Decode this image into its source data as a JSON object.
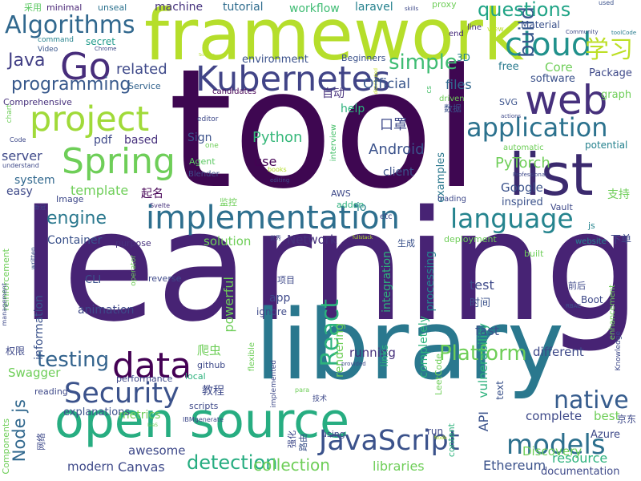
{
  "words": [
    {
      "text": "tool",
      "color": "#3e0751"
    },
    {
      "text": "learning",
      "color": "#472374"
    },
    {
      "text": "library",
      "color": "#2a788e"
    },
    {
      "text": "framework",
      "color": "#b5de2b"
    },
    {
      "text": "open source",
      "color": "#27ad81"
    },
    {
      "text": "list",
      "color": "#3b2a6e"
    },
    {
      "text": "Kubernetes",
      "color": "#414487"
    },
    {
      "text": "web",
      "color": "#46307c"
    },
    {
      "text": "Go",
      "color": "#472d7b"
    },
    {
      "text": "project",
      "color": "#a0da39"
    },
    {
      "text": "Spring",
      "color": "#6ece58"
    },
    {
      "text": "implementation",
      "color": "#2e6f8e"
    },
    {
      "text": "cloud",
      "color": "#21918c"
    },
    {
      "text": "application",
      "color": "#2c728e"
    },
    {
      "text": "language",
      "color": "#25848e"
    },
    {
      "text": "data",
      "color": "#440154"
    },
    {
      "text": "Security",
      "color": "#3b528b"
    },
    {
      "text": "JavaScript",
      "color": "#3b528b"
    },
    {
      "text": "models",
      "color": "#2d708e"
    },
    {
      "text": "Algorithms",
      "color": "#31688e"
    },
    {
      "text": "build",
      "color": "#38588c"
    },
    {
      "text": "questions",
      "color": "#20a486"
    },
    {
      "text": "学习",
      "color": "#bddf26"
    },
    {
      "text": "React",
      "color": "#2db27d"
    },
    {
      "text": "Platform",
      "color": "#6ece58"
    },
    {
      "text": "testing",
      "color": "#33638d"
    },
    {
      "text": "native",
      "color": "#365c8d"
    },
    {
      "text": "detection",
      "color": "#27ad81"
    },
    {
      "text": "simple",
      "color": "#3fbc73"
    },
    {
      "text": "Java",
      "color": "#423f85"
    },
    {
      "text": "programming",
      "color": "#38598c"
    },
    {
      "text": "Node js",
      "color": "#31688e"
    },
    {
      "text": "engine",
      "color": "#2a788e"
    },
    {
      "text": "Android",
      "color": "#3b528b"
    },
    {
      "text": "Python",
      "color": "#35b779"
    },
    {
      "text": "PyTorch",
      "color": "#6ece58"
    },
    {
      "text": "related",
      "color": "#3e4989"
    },
    {
      "text": "machine",
      "color": "#46337e"
    },
    {
      "text": "tutorial",
      "color": "#2f6c8e"
    },
    {
      "text": "workflow",
      "color": "#3fbc73"
    },
    {
      "text": "laravel",
      "color": "#26828e"
    },
    {
      "text": "minimal",
      "color": "#482475"
    },
    {
      "text": "unseal",
      "color": "#2c728e"
    },
    {
      "text": "采用",
      "color": "#5cc863"
    },
    {
      "text": "proxy",
      "color": "#6ece58"
    },
    {
      "text": "skills",
      "color": "#3e4989"
    },
    {
      "text": "used",
      "color": "#3b528b"
    },
    {
      "text": "command",
      "color": "#26828e"
    },
    {
      "text": "secret",
      "color": "#1f9a8a"
    },
    {
      "text": "Video",
      "color": "#39568c"
    },
    {
      "text": "Chrome",
      "color": "#3e4989"
    },
    {
      "text": "Screens",
      "color": "#b5de2b"
    },
    {
      "text": "Material",
      "color": "#3b528b"
    },
    {
      "text": "line",
      "color": "#46307c"
    },
    {
      "text": "view",
      "color": "#bddf26"
    },
    {
      "text": "end",
      "color": "#472c7a"
    },
    {
      "text": "toolCode",
      "color": "#287c8e"
    },
    {
      "text": "3D",
      "color": "#25848e"
    },
    {
      "text": "environment",
      "color": "#3b528b"
    },
    {
      "text": "Beginners",
      "color": "#3b528b"
    },
    {
      "text": "distributed",
      "color": "#c8e020"
    },
    {
      "text": "Core",
      "color": "#6ece58"
    },
    {
      "text": "free",
      "color": "#297a8e"
    },
    {
      "text": "Package",
      "color": "#3e4989"
    },
    {
      "text": "software",
      "color": "#3b528b"
    },
    {
      "text": "Official",
      "color": "#39568c"
    },
    {
      "text": "files",
      "color": "#31688e"
    },
    {
      "text": "cs",
      "color": "#4ac16d"
    },
    {
      "text": "graph",
      "color": "#6ece58"
    },
    {
      "text": "Service",
      "color": "#33638d"
    },
    {
      "text": "candidates",
      "color": "#440154"
    },
    {
      "text": "自动",
      "color": "#46307c"
    },
    {
      "text": "driven",
      "color": "#6ece58"
    },
    {
      "text": "数据",
      "color": "#3b528b"
    },
    {
      "text": "SVG",
      "color": "#3b528b"
    },
    {
      "text": "actions",
      "color": "#3e4989"
    },
    {
      "text": "Comprehensive",
      "color": "#46307c"
    },
    {
      "text": "chart",
      "color": "#6ece58"
    },
    {
      "text": "help",
      "color": "#2db27d"
    },
    {
      "text": "editor",
      "color": "#3e4989"
    },
    {
      "text": "口罩",
      "color": "#3e4989"
    },
    {
      "text": "Code",
      "color": "#3e4989"
    },
    {
      "text": "pdf",
      "color": "#3e4989"
    },
    {
      "text": "based",
      "color": "#46307c"
    },
    {
      "text": "Sign",
      "color": "#3b528b"
    },
    {
      "text": "one",
      "color": "#6ece58"
    },
    {
      "text": "interview",
      "color": "#4ac16d"
    },
    {
      "text": "automatic",
      "color": "#6ece58"
    },
    {
      "text": "potential",
      "color": "#26828e"
    },
    {
      "text": "server",
      "color": "#3e4989"
    },
    {
      "text": "understand",
      "color": "#3e4989"
    },
    {
      "text": "Agent",
      "color": "#5cc863"
    },
    {
      "text": "Blender",
      "color": "#3e4989"
    },
    {
      "text": "use",
      "color": "#440154"
    },
    {
      "text": "books",
      "color": "#b5de2b"
    },
    {
      "text": "editing",
      "color": "#3e4989"
    },
    {
      "text": "client",
      "color": "#3b528b"
    },
    {
      "text": "examples",
      "color": "#2a788e"
    },
    {
      "text": "Professional",
      "color": "#3e4989"
    },
    {
      "text": "system",
      "color": "#31688e"
    },
    {
      "text": "easy",
      "color": "#3e4989"
    },
    {
      "text": "template",
      "color": "#6ece58"
    },
    {
      "text": "起名",
      "color": "#440154"
    },
    {
      "text": "Image",
      "color": "#3e4989"
    },
    {
      "text": "Svelte",
      "color": "#46307c"
    },
    {
      "text": "监控",
      "color": "#6ece58"
    },
    {
      "text": "AWS",
      "color": "#3e4989"
    },
    {
      "text": "addon",
      "color": "#2db27d"
    },
    {
      "text": "io",
      "color": "#26828e"
    },
    {
      "text": "Google",
      "color": "#3b528b"
    },
    {
      "text": "inspired",
      "color": "#3b528b"
    },
    {
      "text": "trading",
      "color": "#3e4989"
    },
    {
      "text": "Vault",
      "color": "#3e4989"
    },
    {
      "text": "js",
      "color": "#25848e"
    },
    {
      "text": "支持",
      "color": "#6ece58"
    },
    {
      "text": "新冠",
      "color": "#3e4989"
    },
    {
      "text": "etc",
      "color": "#3e4989"
    },
    {
      "text": "Container",
      "color": "#3b528b"
    },
    {
      "text": "solution",
      "color": "#6ece58"
    },
    {
      "text": "Network",
      "color": "#46307c"
    },
    {
      "text": "生成",
      "color": "#3b528b"
    },
    {
      "text": "deployment",
      "color": "#6ece58"
    },
    {
      "text": "website",
      "color": "#26828e"
    },
    {
      "text": "下单",
      "color": "#3e4989"
    },
    {
      "text": "written",
      "color": "#3b528b"
    },
    {
      "text": "reinforcement",
      "color": "#6ece58"
    },
    {
      "text": "purpose",
      "color": "#46307c"
    },
    {
      "text": "operator",
      "color": "#6ece58"
    },
    {
      "text": "优秀",
      "color": "#3e4989"
    },
    {
      "text": "fullstack",
      "color": "#b5de2b"
    },
    {
      "text": "built",
      "color": "#6ece58"
    },
    {
      "text": "CLI",
      "color": "#3b528b"
    },
    {
      "text": "reverse",
      "color": "#3e4989"
    },
    {
      "text": "项目",
      "color": "#3e4989"
    },
    {
      "text": "powerful",
      "color": "#6ece58"
    },
    {
      "text": "integration",
      "color": "#2db27d"
    },
    {
      "text": "processing",
      "color": "#26828e"
    },
    {
      "text": "test",
      "color": "#3e4989"
    },
    {
      "text": "时间",
      "color": "#3b528b"
    },
    {
      "text": "前后",
      "color": "#3e4989"
    },
    {
      "text": "Boot",
      "color": "#3e4989"
    },
    {
      "text": "RBAC",
      "color": "#3b528b"
    },
    {
      "text": "enhancement",
      "color": "#6ece58"
    },
    {
      "text": "management",
      "color": "#3e4989"
    },
    {
      "text": "animation",
      "color": "#3e4989"
    },
    {
      "text": "information",
      "color": "#3b528b"
    },
    {
      "text": "app",
      "color": "#3e4989"
    },
    {
      "text": "ignore",
      "color": "#3e4989"
    },
    {
      "text": "rendering",
      "color": "#6ece58"
    },
    {
      "text": "completely",
      "color": "#2db27d"
    },
    {
      "text": "vulnerability",
      "color": "#2db27d"
    },
    {
      "text": "fast",
      "color": "#3b528b"
    },
    {
      "text": "Knowledge",
      "color": "#3e4989"
    },
    {
      "text": "权限",
      "color": "#3e4989"
    },
    {
      "text": "爬虫",
      "color": "#6ece58"
    },
    {
      "text": "running",
      "color": "#46307c"
    },
    {
      "text": "different",
      "color": "#3e4989"
    },
    {
      "text": "Swagger",
      "color": "#6ece58"
    },
    {
      "text": "performance",
      "color": "#3e4989"
    },
    {
      "text": "local",
      "color": "#2db27d"
    },
    {
      "text": "github",
      "color": "#3e4989"
    },
    {
      "text": "flexible",
      "color": "#6ece58"
    },
    {
      "text": "implemented",
      "color": "#3e4989"
    },
    {
      "text": "provided",
      "color": "#3e4989"
    },
    {
      "text": "links",
      "color": "#2db27d"
    },
    {
      "text": "LeetCode",
      "color": "#6ece58"
    },
    {
      "text": "text",
      "color": "#3b528b"
    },
    {
      "text": "reading",
      "color": "#3e4989"
    },
    {
      "text": "教程",
      "color": "#3e4989"
    },
    {
      "text": "para",
      "color": "#6ece58"
    },
    {
      "text": "技术",
      "color": "#3e4989"
    },
    {
      "text": "metrics",
      "color": "#6ece58"
    },
    {
      "text": "scripts",
      "color": "#3e4989"
    },
    {
      "text": "IBMgenerate",
      "color": "#3e4989"
    },
    {
      "text": "explanations",
      "color": "#3b528b"
    },
    {
      "text": "API",
      "color": "#3b528b"
    },
    {
      "text": "complete",
      "color": "#3e4989"
    },
    {
      "text": "best",
      "color": "#6ece58"
    },
    {
      "text": "京东",
      "color": "#3e4989"
    },
    {
      "text": "Components",
      "color": "#6ece58"
    },
    {
      "text": "网络",
      "color": "#3e4989"
    },
    {
      "text": "IaaS",
      "color": "#6ece58"
    },
    {
      "text": "路由",
      "color": "#3b528b"
    },
    {
      "text": "强化",
      "color": "#3e4989"
    },
    {
      "text": "using",
      "color": "#3e4989"
    },
    {
      "text": "run",
      "color": "#3e4989"
    },
    {
      "text": "Node",
      "color": "#b5de2b"
    },
    {
      "text": "content",
      "color": "#2db27d"
    },
    {
      "text": "Discovery",
      "color": "#6ece58"
    },
    {
      "text": "Azure",
      "color": "#3e4989"
    },
    {
      "text": "awesome",
      "color": "#3e4989"
    },
    {
      "text": "modern",
      "color": "#3e4989"
    },
    {
      "text": "Canvas",
      "color": "#3e4989"
    },
    {
      "text": "collection",
      "color": "#6ece58"
    },
    {
      "text": "libraries",
      "color": "#6ece58"
    },
    {
      "text": "Ethereum",
      "color": "#3b528b"
    },
    {
      "text": "resource",
      "color": "#2db27d"
    },
    {
      "text": "documentation",
      "color": "#3e4989"
    },
    {
      "text": "Community",
      "color": "#3e4989"
    }
  ]
}
